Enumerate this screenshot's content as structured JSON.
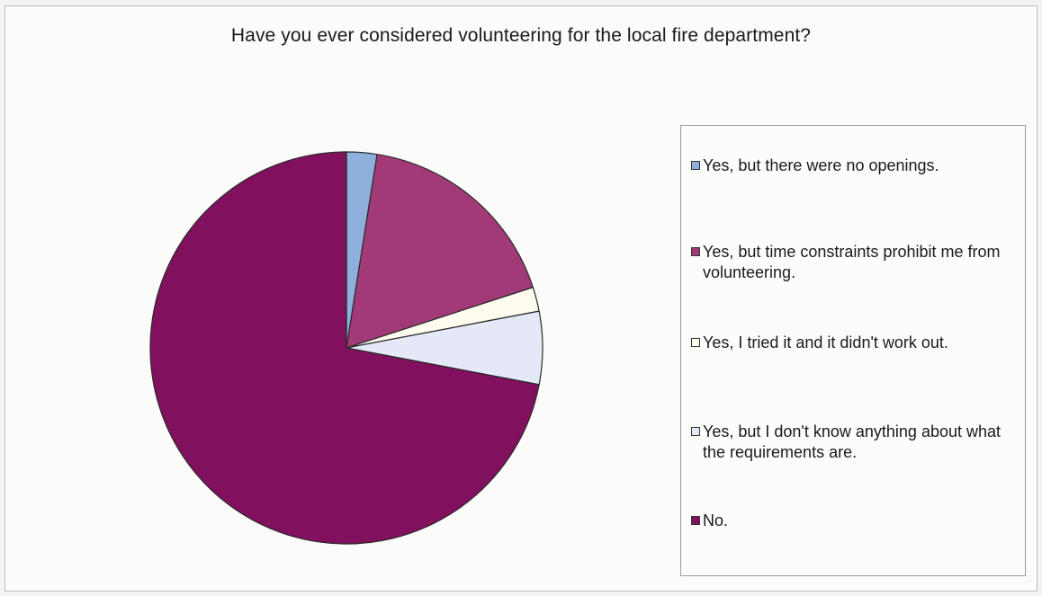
{
  "chart_data": {
    "type": "pie",
    "title": "Have you ever considered volunteering for the local fire department?",
    "legend_position": "right",
    "start_angle_deg": 0,
    "direction": "clockwise",
    "slices": [
      {
        "label": "Yes, but there were no openings.",
        "value": 2.5,
        "color": "#8fb0dc"
      },
      {
        "label": "Yes, but time constraints prohibit me from volunteering.",
        "value": 17.5,
        "color": "#a23a77"
      },
      {
        "label": "Yes, I tried it and it didn't work out.",
        "value": 2.0,
        "color": "#fdfcee"
      },
      {
        "label": "Yes, but I don't know anything about what the requirements are.",
        "value": 6.0,
        "color": "#e5e8f6"
      },
      {
        "label": "No.",
        "value": 72.0,
        "color": "#81105f"
      }
    ]
  }
}
